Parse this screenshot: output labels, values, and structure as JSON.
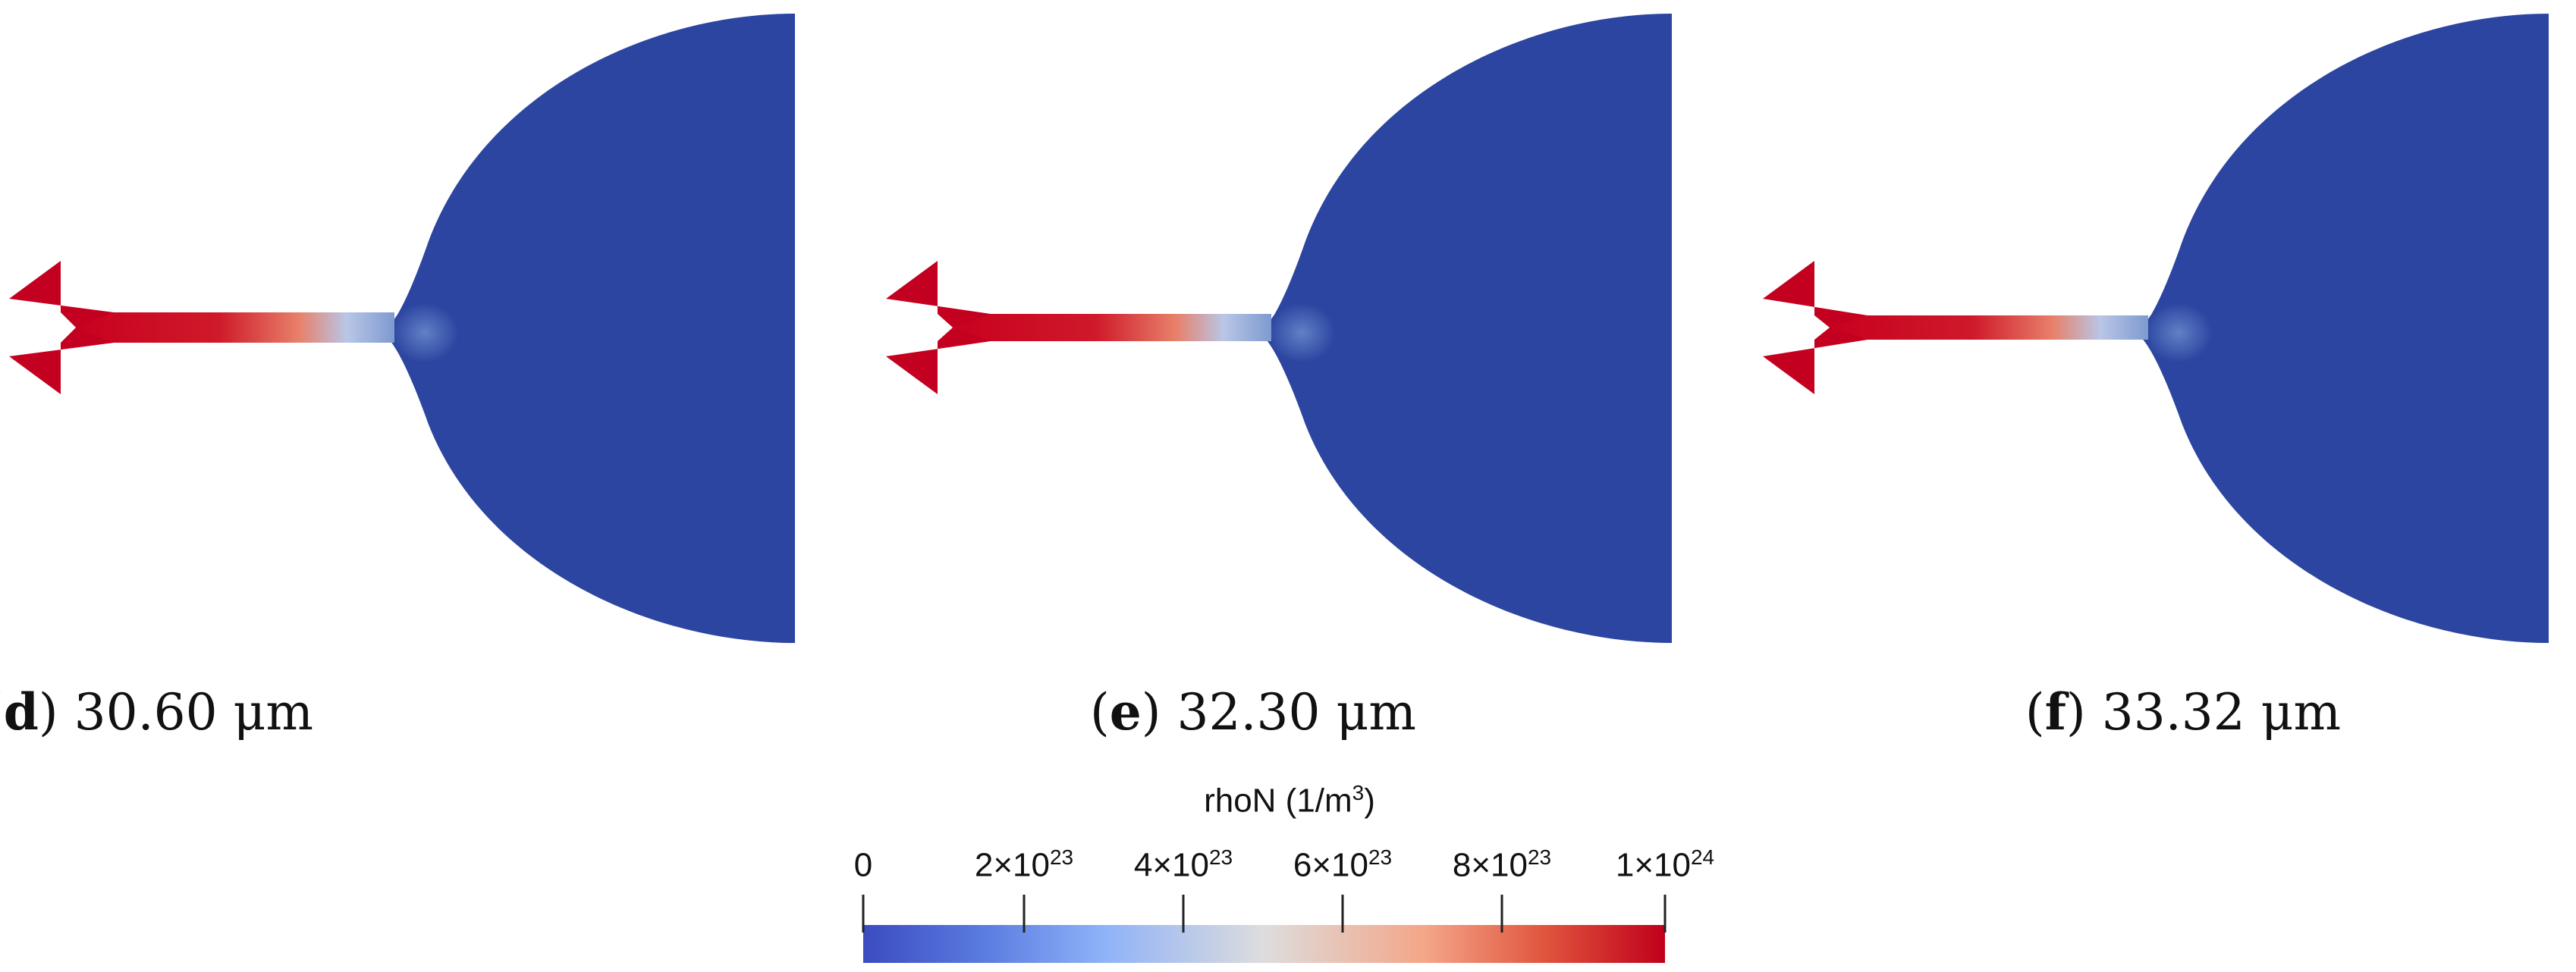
{
  "panels": [
    {
      "letter": "d",
      "value": "30.60 μm"
    },
    {
      "letter": "e",
      "value": "32.30 μm"
    },
    {
      "letter": "f",
      "value": "33.32 μm"
    }
  ],
  "colorbar": {
    "title_main": "rhoN (1/m",
    "title_sup": "3",
    "title_end": ")",
    "ticks": [
      {
        "base": "0",
        "sup": ""
      },
      {
        "base": "2×10",
        "sup": "23"
      },
      {
        "base": "4×10",
        "sup": "23"
      },
      {
        "base": "6×10",
        "sup": "23"
      },
      {
        "base": "8×10",
        "sup": "23"
      },
      {
        "base": "1×10",
        "sup": "24"
      }
    ],
    "colors": {
      "low": "#3b4cc0",
      "mid": "#dddddd",
      "high": "#c0001a"
    }
  },
  "colors": {
    "domain_fill": "#2b45a0",
    "tip_red": "#c40020"
  }
}
